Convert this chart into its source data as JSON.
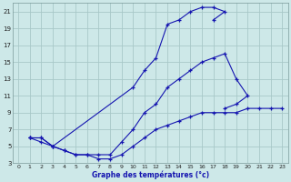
{
  "xlabel": "Graphe des températures (°c)",
  "background_color": "#cde8e8",
  "grid_color": "#a8c8c8",
  "line_color": "#1515b0",
  "xlim": [
    -0.5,
    23.5
  ],
  "ylim": [
    3,
    22
  ],
  "xticks": [
    0,
    1,
    2,
    3,
    4,
    5,
    6,
    7,
    8,
    9,
    10,
    11,
    12,
    13,
    14,
    15,
    16,
    17,
    18,
    19,
    20,
    21,
    22,
    23
  ],
  "yticks": [
    3,
    5,
    7,
    9,
    11,
    13,
    15,
    17,
    19,
    21
  ],
  "curve1_x": [
    1,
    2,
    3,
    10,
    11,
    12,
    13,
    14,
    15,
    16,
    17,
    18,
    17
  ],
  "curve1_y": [
    6,
    6,
    5,
    12,
    14,
    15.5,
    19.5,
    20,
    21,
    21.5,
    21.5,
    21,
    20
  ],
  "curve2_x": [
    1,
    2,
    3,
    4,
    5,
    6,
    7,
    8,
    9,
    10,
    11,
    12,
    13,
    14,
    15,
    16,
    17,
    18,
    19,
    20,
    19,
    18
  ],
  "curve2_y": [
    6,
    6,
    5,
    4.5,
    4,
    4,
    4,
    4,
    5.5,
    7,
    9,
    10,
    12,
    13,
    14,
    15,
    15.5,
    16,
    13,
    11,
    10,
    9.5
  ],
  "curve3_x": [
    1,
    2,
    3,
    4,
    5,
    6,
    7,
    8,
    9,
    10,
    11,
    12,
    13,
    14,
    15,
    16,
    17,
    18,
    19,
    20,
    21,
    22,
    23
  ],
  "curve3_y": [
    6,
    5.5,
    5,
    4.5,
    4,
    4,
    3.5,
    3.5,
    4,
    5,
    6,
    7,
    7.5,
    8,
    8.5,
    9,
    9,
    9,
    9,
    9.5,
    9.5,
    9.5,
    9.5
  ]
}
